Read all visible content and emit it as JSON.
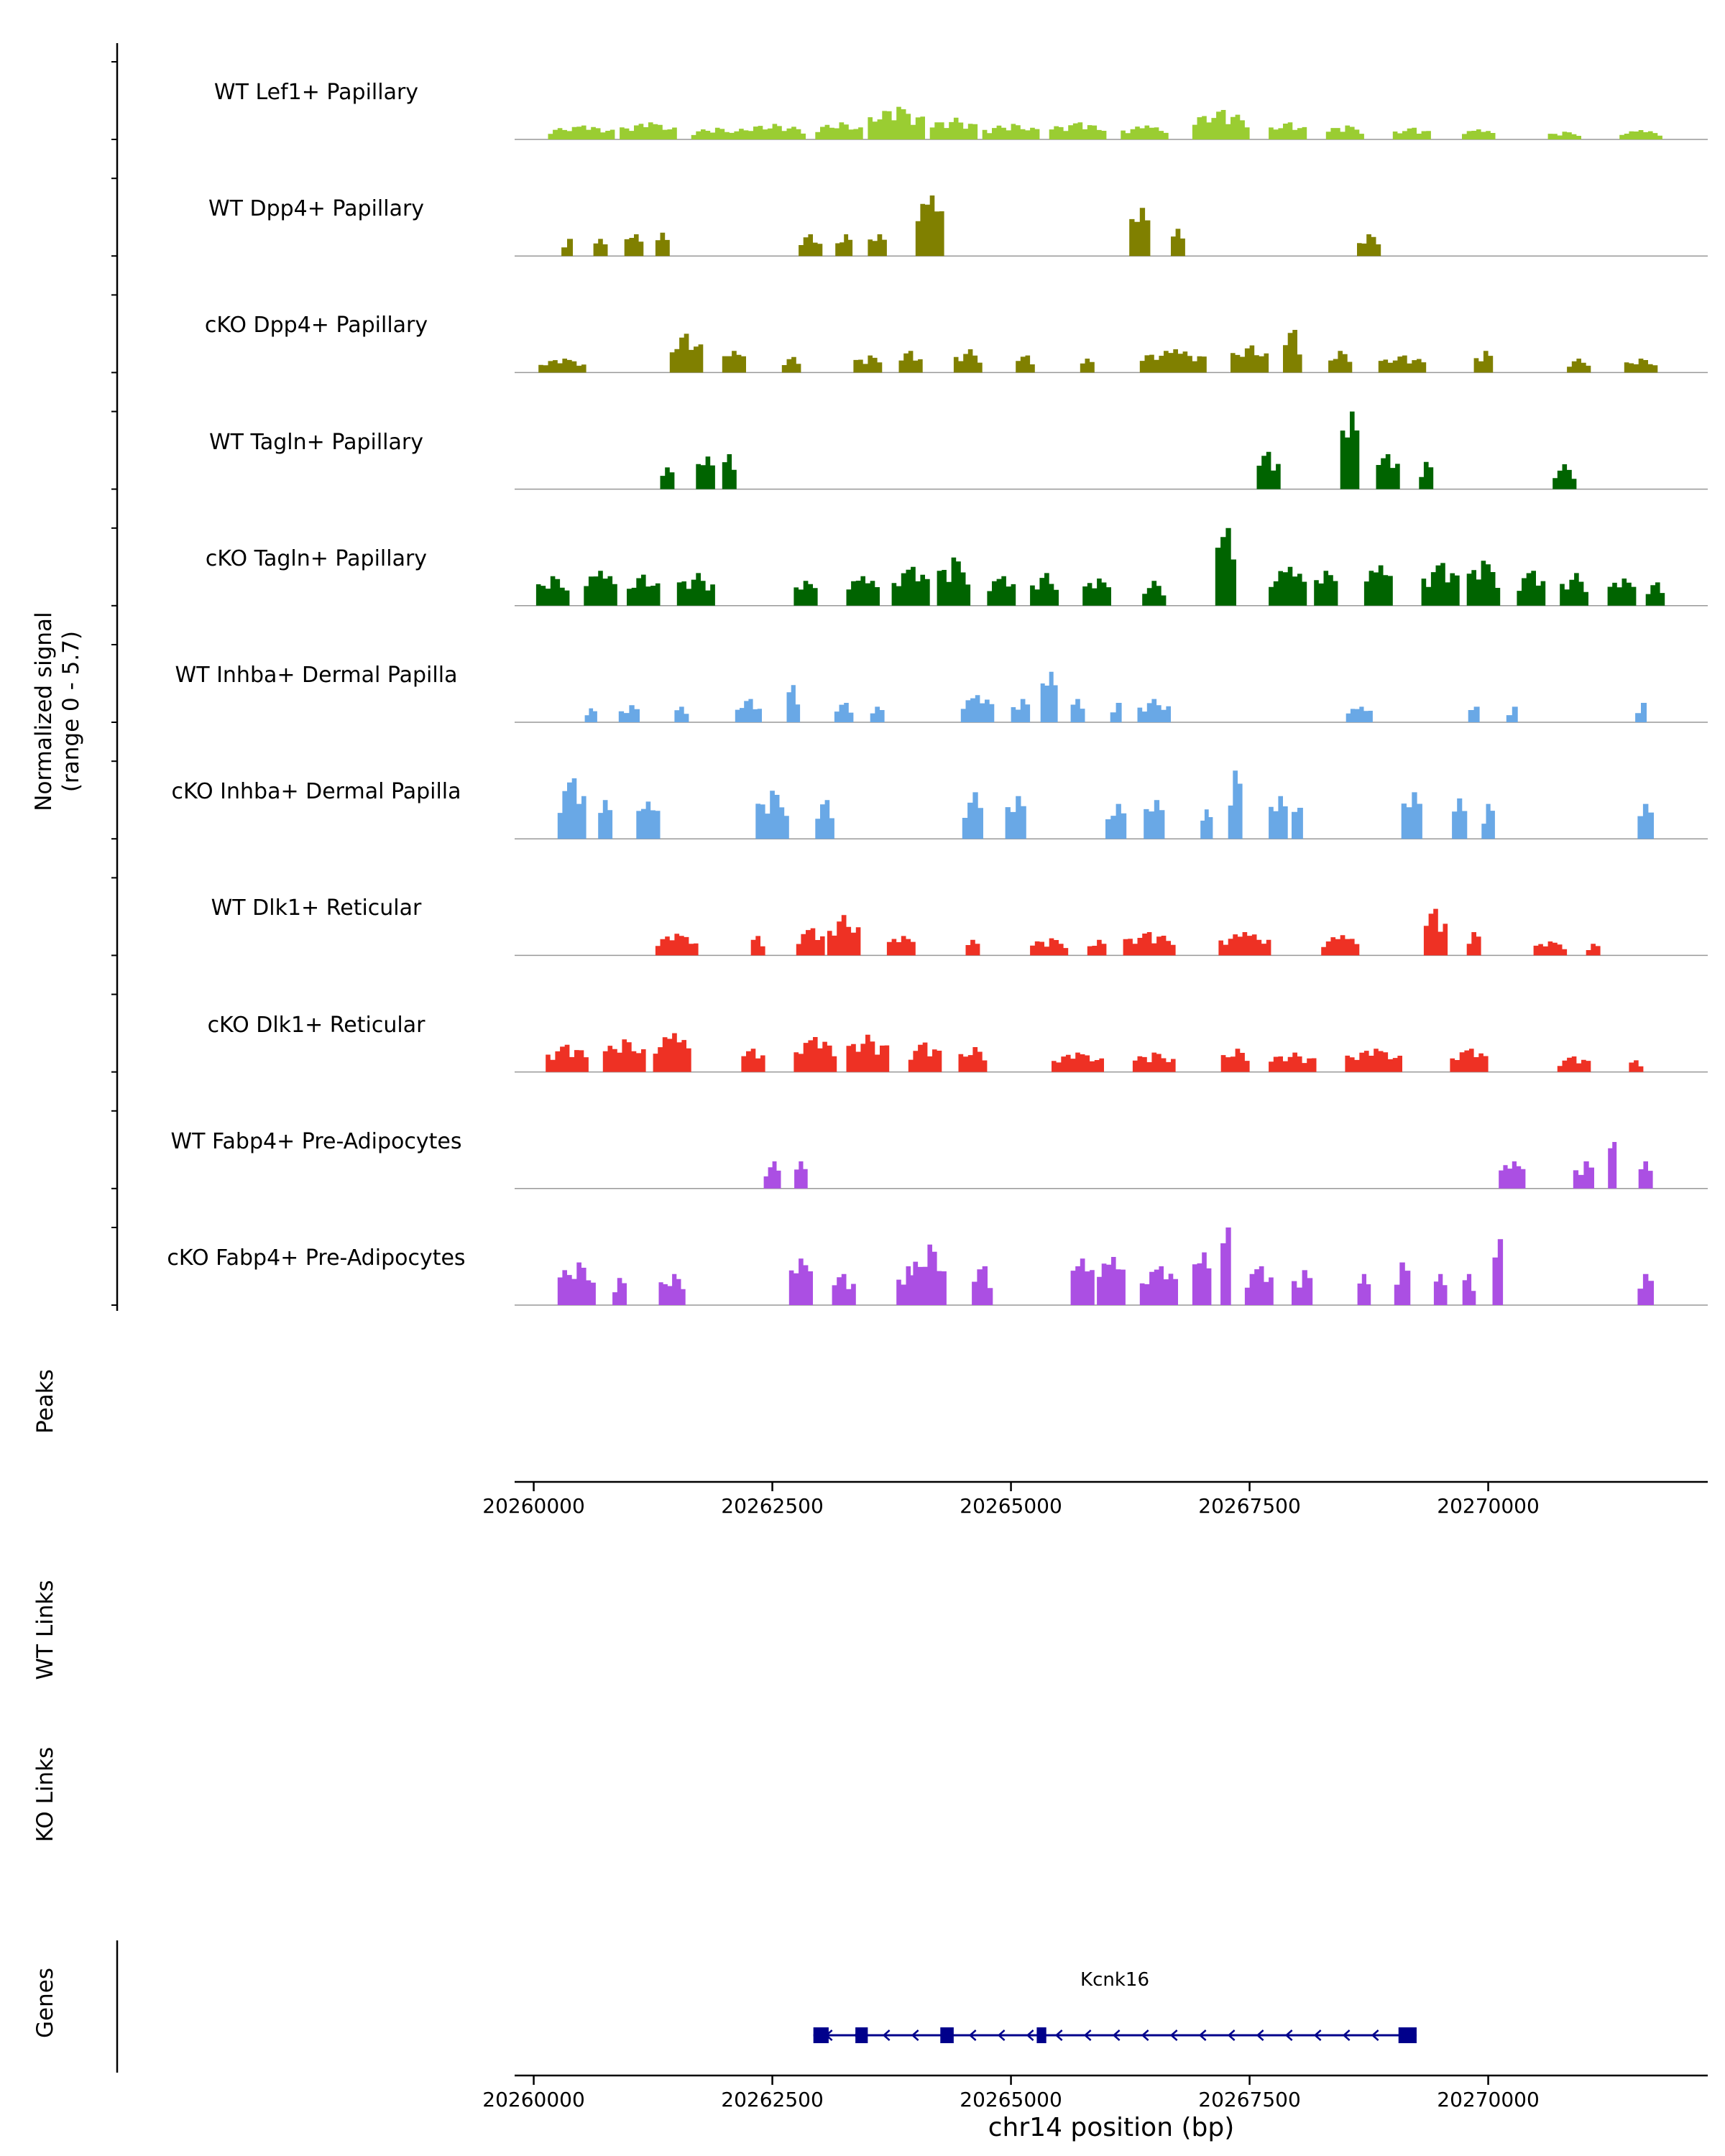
{
  "figure": {
    "y_axis_label_line1": "Normalized signal",
    "y_axis_label_line2": "(range 0 - 5.7)",
    "section_labels": {
      "peaks": "Peaks",
      "wt_links": "WT Links",
      "ko_links": "KO Links",
      "genes": "Genes"
    },
    "x_axis_label": "chr14 position (bp)"
  },
  "chart_data": {
    "type": "area",
    "title": "",
    "xlabel": "chr14 position (bp)",
    "ylabel": "Normalized signal (range 0 - 5.7)",
    "x_range": [
      20259800,
      20272300
    ],
    "x_ticks": [
      20260000,
      20262500,
      20265000,
      20267500,
      20270000
    ],
    "x_tick_labels": [
      "20260000",
      "20262500",
      "20265000",
      "20267500",
      "20270000"
    ],
    "signal_range": [
      0,
      5.7
    ],
    "baseline_color": "#999999",
    "axis_color": "#000000",
    "tracks": [
      {
        "label": "WT Lef1+ Papillary",
        "color": "#9ACD32",
        "peaks": [
          [
            20260500,
            700,
            0.18
          ],
          [
            20261200,
            600,
            0.22
          ],
          [
            20261900,
            500,
            0.15
          ],
          [
            20262500,
            700,
            0.2
          ],
          [
            20263200,
            500,
            0.22
          ],
          [
            20263800,
            600,
            0.42
          ],
          [
            20264400,
            500,
            0.28
          ],
          [
            20265000,
            600,
            0.2
          ],
          [
            20265700,
            600,
            0.22
          ],
          [
            20266400,
            500,
            0.18
          ],
          [
            20267200,
            600,
            0.38
          ],
          [
            20267900,
            400,
            0.22
          ],
          [
            20268500,
            400,
            0.18
          ],
          [
            20269200,
            400,
            0.15
          ],
          [
            20269900,
            350,
            0.13
          ],
          [
            20270800,
            350,
            0.1
          ],
          [
            20271600,
            450,
            0.12
          ]
        ]
      },
      {
        "label": "WT Dpp4+ Papillary",
        "color": "#808000",
        "peaks": [
          [
            20260350,
            120,
            0.22
          ],
          [
            20260700,
            150,
            0.22
          ],
          [
            20261050,
            200,
            0.28
          ],
          [
            20261350,
            150,
            0.3
          ],
          [
            20262900,
            250,
            0.28
          ],
          [
            20263250,
            180,
            0.28
          ],
          [
            20263600,
            200,
            0.28
          ],
          [
            20264150,
            300,
            0.78
          ],
          [
            20266350,
            220,
            0.62
          ],
          [
            20266750,
            150,
            0.35
          ],
          [
            20268750,
            250,
            0.28
          ]
        ]
      },
      {
        "label": "cKO Dpp4+ Papillary",
        "color": "#808000",
        "peaks": [
          [
            20260300,
            500,
            0.18
          ],
          [
            20261600,
            350,
            0.5
          ],
          [
            20262100,
            250,
            0.28
          ],
          [
            20262700,
            200,
            0.2
          ],
          [
            20263500,
            300,
            0.22
          ],
          [
            20263950,
            250,
            0.28
          ],
          [
            20264550,
            300,
            0.3
          ],
          [
            20265150,
            200,
            0.22
          ],
          [
            20265800,
            150,
            0.18
          ],
          [
            20266700,
            700,
            0.3
          ],
          [
            20267500,
            400,
            0.35
          ],
          [
            20267950,
            200,
            0.55
          ],
          [
            20268450,
            250,
            0.28
          ],
          [
            20269100,
            500,
            0.22
          ],
          [
            20269950,
            200,
            0.28
          ],
          [
            20270950,
            250,
            0.18
          ],
          [
            20271600,
            350,
            0.18
          ]
        ]
      },
      {
        "label": "WT Tagln+ Papillary",
        "color": "#006400",
        "peaks": [
          [
            20261400,
            150,
            0.28
          ],
          [
            20261800,
            200,
            0.42
          ],
          [
            20262050,
            150,
            0.45
          ],
          [
            20267700,
            250,
            0.48
          ],
          [
            20268550,
            200,
            1.0
          ],
          [
            20268950,
            250,
            0.45
          ],
          [
            20269350,
            150,
            0.35
          ],
          [
            20270800,
            250,
            0.32
          ]
        ]
      },
      {
        "label": "cKO Tagln+ Papillary",
        "color": "#006400",
        "peaks": [
          [
            20260200,
            350,
            0.38
          ],
          [
            20260700,
            350,
            0.45
          ],
          [
            20261150,
            350,
            0.4
          ],
          [
            20261700,
            400,
            0.42
          ],
          [
            20262850,
            250,
            0.32
          ],
          [
            20263450,
            350,
            0.38
          ],
          [
            20263950,
            400,
            0.5
          ],
          [
            20264400,
            350,
            0.62
          ],
          [
            20264900,
            300,
            0.38
          ],
          [
            20265350,
            300,
            0.42
          ],
          [
            20265900,
            300,
            0.35
          ],
          [
            20266500,
            250,
            0.32
          ],
          [
            20267250,
            220,
            1.0
          ],
          [
            20267900,
            400,
            0.5
          ],
          [
            20268300,
            250,
            0.45
          ],
          [
            20268850,
            300,
            0.52
          ],
          [
            20269500,
            400,
            0.55
          ],
          [
            20269950,
            350,
            0.58
          ],
          [
            20270450,
            300,
            0.45
          ],
          [
            20270900,
            300,
            0.42
          ],
          [
            20271400,
            300,
            0.35
          ],
          [
            20271750,
            200,
            0.3
          ]
        ]
      },
      {
        "label": "WT Inhba+ Dermal Papilla",
        "color": "#69A8E6",
        "peaks": [
          [
            20260600,
            130,
            0.18
          ],
          [
            20261000,
            220,
            0.22
          ],
          [
            20261550,
            150,
            0.2
          ],
          [
            20262250,
            280,
            0.3
          ],
          [
            20262720,
            140,
            0.48
          ],
          [
            20263250,
            200,
            0.25
          ],
          [
            20263600,
            150,
            0.2
          ],
          [
            20264650,
            350,
            0.35
          ],
          [
            20265100,
            200,
            0.3
          ],
          [
            20265400,
            180,
            0.65
          ],
          [
            20265700,
            150,
            0.3
          ],
          [
            20266100,
            120,
            0.25
          ],
          [
            20266500,
            350,
            0.3
          ],
          [
            20268650,
            280,
            0.2
          ],
          [
            20269850,
            120,
            0.2
          ],
          [
            20270250,
            120,
            0.2
          ],
          [
            20271600,
            120,
            0.25
          ]
        ]
      },
      {
        "label": "cKO Inhba+ Dermal Papilla",
        "color": "#69A8E6",
        "peaks": [
          [
            20260400,
            300,
            0.78
          ],
          [
            20260750,
            150,
            0.5
          ],
          [
            20261200,
            250,
            0.48
          ],
          [
            20262500,
            350,
            0.62
          ],
          [
            20263050,
            200,
            0.5
          ],
          [
            20264600,
            220,
            0.6
          ],
          [
            20265050,
            220,
            0.55
          ],
          [
            20266100,
            220,
            0.45
          ],
          [
            20266500,
            220,
            0.5
          ],
          [
            20267050,
            130,
            0.38
          ],
          [
            20267350,
            150,
            0.88
          ],
          [
            20267800,
            200,
            0.55
          ],
          [
            20268000,
            120,
            0.4
          ],
          [
            20269200,
            220,
            0.6
          ],
          [
            20269700,
            160,
            0.52
          ],
          [
            20270000,
            140,
            0.45
          ],
          [
            20271650,
            170,
            0.45
          ]
        ]
      },
      {
        "label": "WT Dlk1+ Reticular",
        "color": "#EE3124",
        "peaks": [
          [
            20261500,
            450,
            0.28
          ],
          [
            20262350,
            150,
            0.25
          ],
          [
            20262900,
            300,
            0.35
          ],
          [
            20263250,
            350,
            0.52
          ],
          [
            20263850,
            300,
            0.25
          ],
          [
            20264600,
            150,
            0.2
          ],
          [
            20265400,
            400,
            0.22
          ],
          [
            20265900,
            200,
            0.2
          ],
          [
            20266450,
            550,
            0.3
          ],
          [
            20267450,
            550,
            0.3
          ],
          [
            20268450,
            400,
            0.26
          ],
          [
            20269450,
            250,
            0.6
          ],
          [
            20269850,
            150,
            0.3
          ],
          [
            20270650,
            350,
            0.18
          ],
          [
            20271100,
            150,
            0.15
          ]
        ]
      },
      {
        "label": "cKO Dlk1+ Reticular",
        "color": "#EE3124",
        "peaks": [
          [
            20260350,
            450,
            0.35
          ],
          [
            20260950,
            450,
            0.42
          ],
          [
            20261450,
            400,
            0.5
          ],
          [
            20262300,
            250,
            0.3
          ],
          [
            20262950,
            450,
            0.45
          ],
          [
            20263500,
            450,
            0.48
          ],
          [
            20264100,
            350,
            0.38
          ],
          [
            20264600,
            300,
            0.32
          ],
          [
            20265700,
            550,
            0.25
          ],
          [
            20266500,
            450,
            0.25
          ],
          [
            20267350,
            300,
            0.3
          ],
          [
            20267950,
            500,
            0.25
          ],
          [
            20268800,
            600,
            0.3
          ],
          [
            20269800,
            400,
            0.3
          ],
          [
            20270900,
            350,
            0.2
          ],
          [
            20271550,
            150,
            0.15
          ]
        ]
      },
      {
        "label": "WT Fabp4+ Pre-Adipocytes",
        "color": "#AB4FE3",
        "peaks": [
          [
            20262500,
            180,
            0.35
          ],
          [
            20262800,
            140,
            0.35
          ],
          [
            20270250,
            280,
            0.35
          ],
          [
            20271000,
            220,
            0.35
          ],
          [
            20271300,
            90,
            0.6
          ],
          [
            20271650,
            150,
            0.35
          ]
        ]
      },
      {
        "label": "cKO Fabp4+ Pre-Adipocytes",
        "color": "#AB4FE3",
        "peaks": [
          [
            20260450,
            400,
            0.55
          ],
          [
            20260900,
            150,
            0.35
          ],
          [
            20261450,
            280,
            0.4
          ],
          [
            20262800,
            250,
            0.6
          ],
          [
            20263250,
            250,
            0.4
          ],
          [
            20263900,
            200,
            0.5
          ],
          [
            20264150,
            350,
            0.78
          ],
          [
            20264700,
            220,
            0.5
          ],
          [
            20265750,
            250,
            0.6
          ],
          [
            20266050,
            300,
            0.62
          ],
          [
            20266550,
            400,
            0.5
          ],
          [
            20267000,
            200,
            0.68
          ],
          [
            20267250,
            110,
            1.0
          ],
          [
            20267600,
            300,
            0.5
          ],
          [
            20268050,
            220,
            0.45
          ],
          [
            20268700,
            140,
            0.4
          ],
          [
            20269100,
            170,
            0.55
          ],
          [
            20269500,
            140,
            0.4
          ],
          [
            20269800,
            140,
            0.4
          ],
          [
            20270100,
            110,
            0.85
          ],
          [
            20271650,
            170,
            0.4
          ]
        ]
      }
    ],
    "genes": [
      {
        "name": "Kcnk16",
        "start": 20262930,
        "end": 20269250,
        "strand": "-",
        "color": "#00008B",
        "exons": [
          [
            20262930,
            20263090
          ],
          [
            20263370,
            20263500
          ],
          [
            20264260,
            20264400
          ],
          [
            20265270,
            20265370
          ],
          [
            20269060,
            20269250
          ]
        ]
      }
    ]
  }
}
